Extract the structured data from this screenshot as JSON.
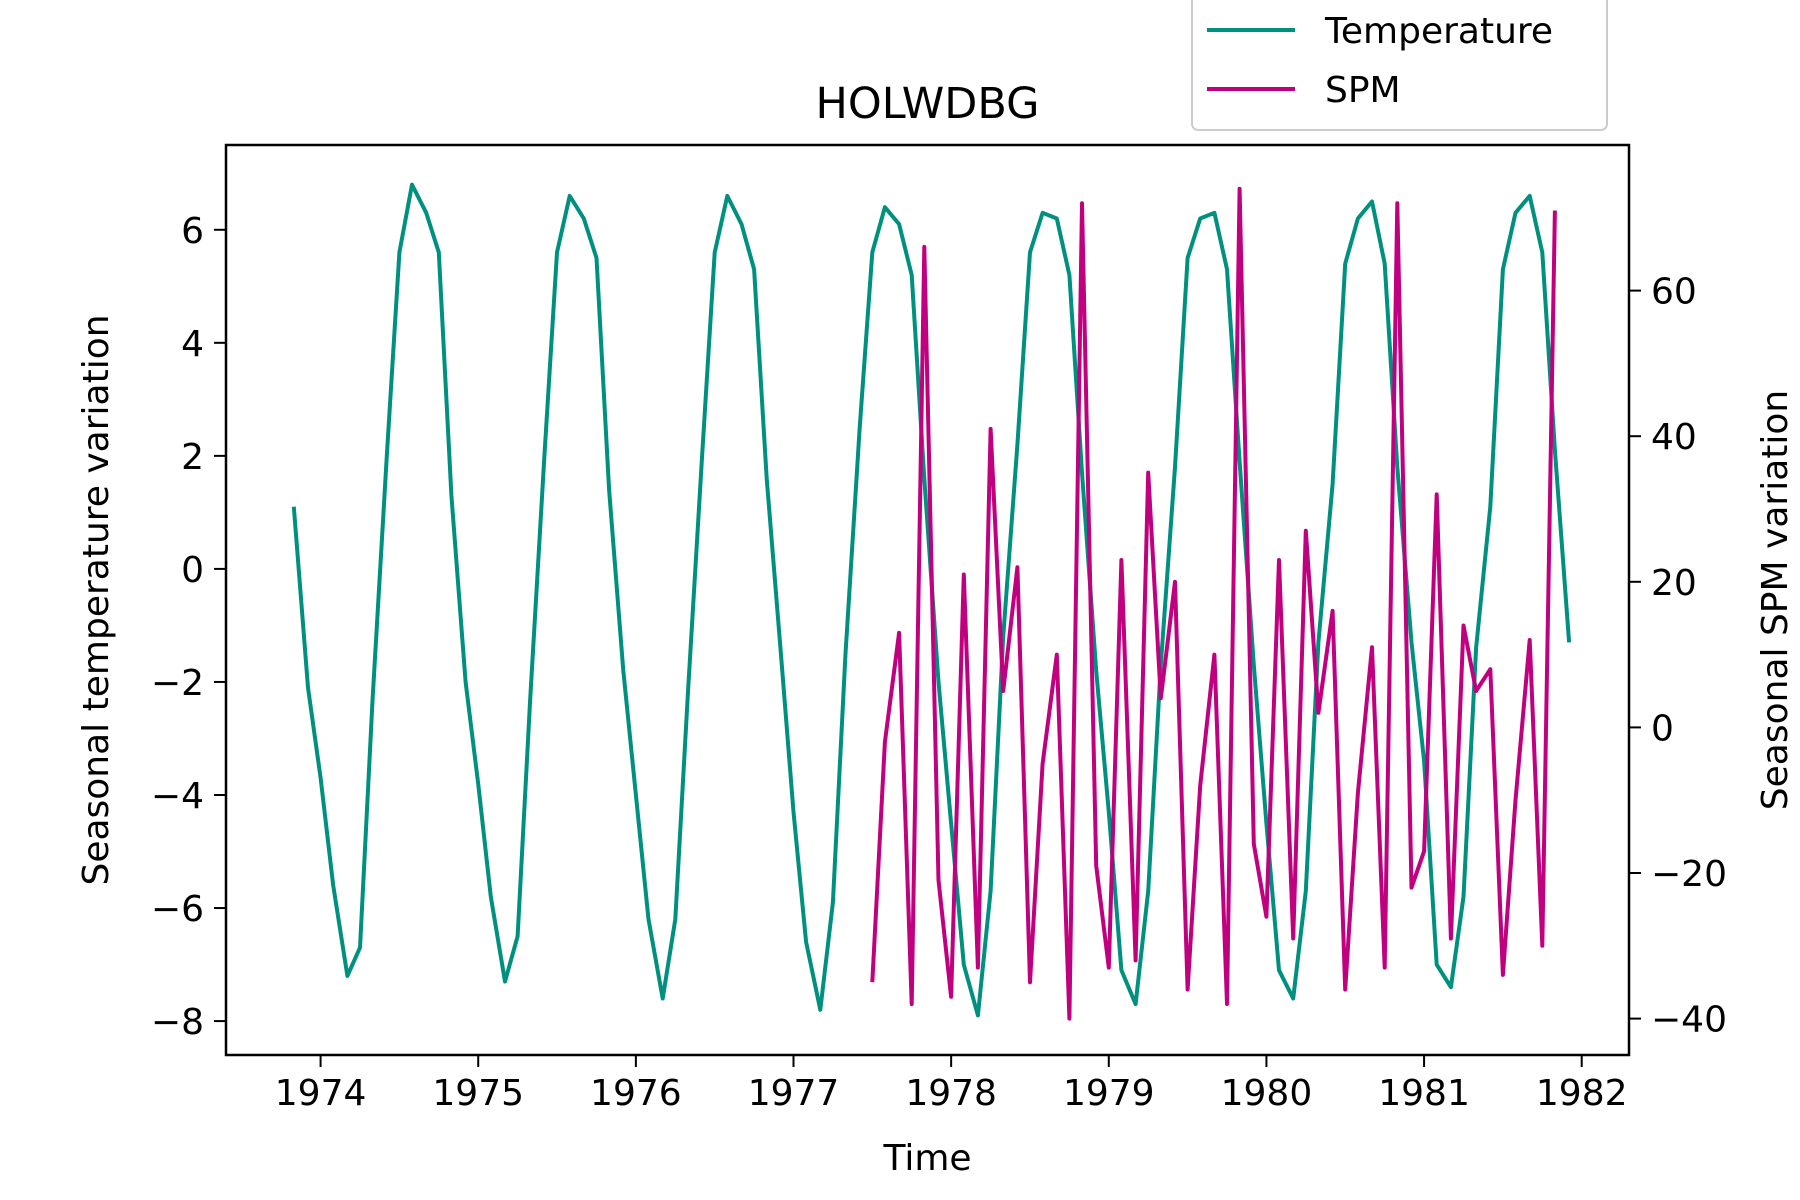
{
  "chart_data": {
    "type": "line",
    "title": "HOLWDBG",
    "xlabel": "Time",
    "ylabel_left": "Seasonal temperature variation",
    "ylabel_right": "Seasonal SPM variation",
    "xlim": [
      1973.4,
      1982.3
    ],
    "ylim_left": [
      -8.6,
      7.5
    ],
    "ylim_right": [
      -45,
      80
    ],
    "xticks": [
      "1974",
      "1975",
      "1976",
      "1977",
      "1978",
      "1979",
      "1980",
      "1981",
      "1982"
    ],
    "yticks_left": [
      "−8",
      "−6",
      "−4",
      "−2",
      "0",
      "2",
      "4",
      "6"
    ],
    "yticks_right": [
      "−40",
      "−20",
      "0",
      "20",
      "40",
      "60"
    ],
    "grid": false,
    "legend_position": "top-right, above plot",
    "series": [
      {
        "name": "Temperature",
        "axis": "left",
        "color": "#009080",
        "x": [
          1973.83,
          1973.92,
          1974.0,
          1974.08,
          1974.17,
          1974.25,
          1974.33,
          1974.42,
          1974.5,
          1974.58,
          1974.67,
          1974.75,
          1974.83,
          1974.92,
          1975.0,
          1975.08,
          1975.17,
          1975.25,
          1975.33,
          1975.42,
          1975.5,
          1975.58,
          1975.67,
          1975.75,
          1975.83,
          1975.92,
          1976.0,
          1976.08,
          1976.17,
          1976.25,
          1976.33,
          1976.42,
          1976.5,
          1976.58,
          1976.67,
          1976.75,
          1976.83,
          1976.92,
          1977.0,
          1977.08,
          1977.17,
          1977.25,
          1977.33,
          1977.42,
          1977.5,
          1977.58,
          1977.67,
          1977.75,
          1977.83,
          1977.92,
          1978.0,
          1978.08,
          1978.17,
          1978.25,
          1978.33,
          1978.42,
          1978.5,
          1978.58,
          1978.67,
          1978.75,
          1978.83,
          1978.92,
          1979.0,
          1979.08,
          1979.17,
          1979.25,
          1979.33,
          1979.42,
          1979.5,
          1979.58,
          1979.67,
          1979.75,
          1979.83,
          1979.92,
          1980.0,
          1980.08,
          1980.17,
          1980.25,
          1980.33,
          1980.42,
          1980.5,
          1980.58,
          1980.67,
          1980.75,
          1980.83,
          1980.92,
          1981.0,
          1981.08,
          1981.17,
          1981.25,
          1981.33,
          1981.42,
          1981.5,
          1981.58,
          1981.67,
          1981.75,
          1981.83,
          1981.92
        ],
        "values": [
          1.1,
          -2.1,
          -3.7,
          -5.6,
          -7.2,
          -6.7,
          -2.3,
          2.0,
          5.6,
          6.8,
          6.3,
          5.6,
          1.3,
          -2.0,
          -3.8,
          -5.8,
          -7.3,
          -6.5,
          -2.3,
          2.0,
          5.6,
          6.6,
          6.2,
          5.5,
          1.4,
          -1.8,
          -4.0,
          -6.2,
          -7.6,
          -6.2,
          -2.2,
          2.0,
          5.6,
          6.6,
          6.1,
          5.3,
          1.6,
          -1.5,
          -4.3,
          -6.6,
          -7.8,
          -5.9,
          -1.5,
          2.5,
          5.6,
          6.4,
          6.1,
          5.2,
          1.6,
          -2.0,
          -4.5,
          -7.0,
          -7.9,
          -5.7,
          -1.2,
          2.2,
          5.6,
          6.3,
          6.2,
          5.2,
          1.7,
          -1.8,
          -4.3,
          -7.1,
          -7.7,
          -5.7,
          -1.7,
          1.8,
          5.5,
          6.2,
          6.3,
          5.3,
          1.9,
          -1.7,
          -4.5,
          -7.1,
          -7.6,
          -5.7,
          -1.3,
          1.5,
          5.4,
          6.2,
          6.5,
          5.4,
          1.8,
          -1.3,
          -3.4,
          -7.0,
          -7.4,
          -5.8,
          -1.4,
          1.1,
          5.3,
          6.3,
          6.6,
          5.6,
          2.1,
          -1.3
        ]
      },
      {
        "name": "SPM",
        "axis": "right",
        "color": "#c0007f",
        "x": [
          1977.5,
          1977.58,
          1977.67,
          1977.75,
          1977.83,
          1977.92,
          1978.0,
          1978.08,
          1978.17,
          1978.25,
          1978.33,
          1978.42,
          1978.5,
          1978.58,
          1978.67,
          1978.75,
          1978.83,
          1978.92,
          1979.0,
          1979.08,
          1979.17,
          1979.25,
          1979.33,
          1979.42,
          1979.5,
          1979.58,
          1979.67,
          1979.75,
          1979.83,
          1979.92,
          1980.0,
          1980.08,
          1980.17,
          1980.25,
          1980.33,
          1980.42,
          1980.5,
          1980.58,
          1980.67,
          1980.75,
          1980.83,
          1980.92,
          1981.0,
          1981.08,
          1981.17,
          1981.25,
          1981.33,
          1981.42,
          1981.5,
          1981.58,
          1981.67,
          1981.75,
          1981.83
        ],
        "values": [
          -35,
          -2,
          13,
          -38,
          66,
          -21,
          -37,
          21,
          -33,
          41,
          5,
          22,
          -35,
          -5,
          10,
          -40,
          72,
          -19,
          -33,
          23,
          -32,
          35,
          4,
          20,
          -36,
          -8,
          10,
          -38,
          74,
          -16,
          -26,
          23,
          -29,
          27,
          2,
          16,
          -36,
          -9,
          11,
          -33,
          72,
          -22,
          -17,
          32,
          -29,
          14,
          5,
          8,
          -34,
          -10,
          12,
          -30,
          71
        ]
      }
    ]
  }
}
